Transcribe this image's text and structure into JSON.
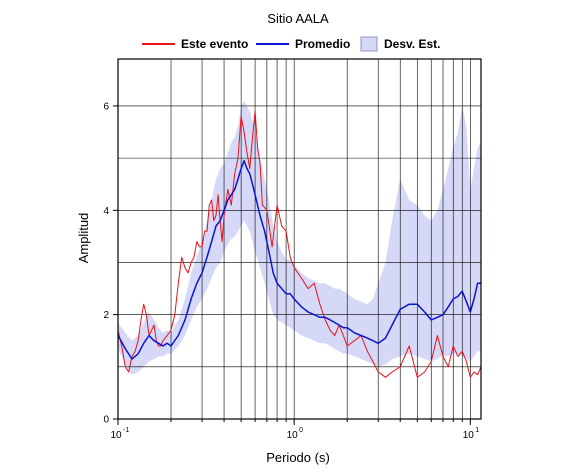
{
  "chart_data": {
    "type": "line",
    "title": "Sitio AALA",
    "xlabel": "Periodo (s)",
    "ylabel": "Amplitud",
    "xscale": "log",
    "xlim": [
      0.1,
      11.5
    ],
    "ylim": [
      0,
      6.9
    ],
    "grid": true,
    "legend_position": "top",
    "x_ticks": [
      {
        "base": "10",
        "exp": "-1",
        "value": 0.1
      },
      {
        "base": "10",
        "exp": "0",
        "value": 1
      },
      {
        "base": "10",
        "exp": "1",
        "value": 10
      }
    ],
    "y_ticks": [
      0,
      2,
      4,
      6
    ],
    "legend": [
      {
        "label": "Este evento",
        "kind": "line",
        "color": "#e8121a"
      },
      {
        "label": "Promedio",
        "kind": "line",
        "color": "#0a14d2"
      },
      {
        "label": "Desv. Est.",
        "kind": "band",
        "color": "#d6d8f7"
      }
    ],
    "series": [
      {
        "name": "Este evento",
        "color": "#e8121a",
        "x": [
          0.1,
          0.105,
          0.11,
          0.115,
          0.12,
          0.125,
          0.13,
          0.135,
          0.14,
          0.145,
          0.15,
          0.155,
          0.16,
          0.165,
          0.17,
          0.175,
          0.18,
          0.19,
          0.2,
          0.21,
          0.22,
          0.23,
          0.24,
          0.25,
          0.26,
          0.27,
          0.28,
          0.29,
          0.3,
          0.31,
          0.32,
          0.33,
          0.34,
          0.35,
          0.36,
          0.37,
          0.38,
          0.39,
          0.4,
          0.42,
          0.44,
          0.46,
          0.48,
          0.5,
          0.52,
          0.54,
          0.56,
          0.58,
          0.6,
          0.62,
          0.64,
          0.66,
          0.7,
          0.75,
          0.8,
          0.85,
          0.9,
          0.95,
          1.0,
          1.1,
          1.2,
          1.3,
          1.4,
          1.5,
          1.6,
          1.7,
          1.8,
          1.9,
          2.0,
          2.2,
          2.4,
          2.6,
          2.8,
          3.0,
          3.3,
          3.6,
          4.0,
          4.5,
          5.0,
          5.5,
          6.0,
          6.5,
          7.0,
          7.5,
          8.0,
          8.5,
          9.0,
          9.5,
          10.0,
          10.5,
          11.0,
          11.5
        ],
        "values": [
          1.7,
          1.4,
          1.0,
          0.9,
          1.2,
          1.3,
          1.5,
          1.9,
          2.2,
          2.0,
          1.6,
          1.7,
          1.8,
          1.5,
          1.4,
          1.4,
          1.5,
          1.6,
          1.7,
          2.0,
          2.6,
          3.1,
          2.9,
          2.8,
          3.0,
          3.1,
          3.4,
          3.3,
          3.3,
          3.6,
          3.6,
          4.1,
          4.2,
          3.8,
          3.9,
          4.3,
          3.8,
          3.4,
          3.9,
          4.4,
          4.1,
          4.7,
          5.0,
          5.8,
          5.5,
          5.1,
          4.8,
          5.4,
          5.9,
          5.2,
          4.9,
          4.1,
          4.0,
          3.3,
          4.1,
          3.7,
          3.6,
          3.1,
          2.9,
          2.7,
          2.5,
          2.6,
          2.2,
          1.9,
          1.7,
          1.6,
          1.8,
          1.6,
          1.4,
          1.5,
          1.6,
          1.3,
          1.1,
          0.9,
          0.8,
          0.9,
          1.0,
          1.4,
          0.8,
          0.9,
          1.1,
          1.6,
          1.2,
          1.0,
          1.4,
          1.2,
          1.3,
          1.1,
          0.8,
          0.9,
          0.85,
          1.0
        ]
      },
      {
        "name": "Promedio",
        "color": "#0a14d2",
        "x": [
          0.1,
          0.11,
          0.12,
          0.13,
          0.14,
          0.15,
          0.16,
          0.17,
          0.18,
          0.19,
          0.2,
          0.22,
          0.24,
          0.26,
          0.28,
          0.3,
          0.32,
          0.34,
          0.36,
          0.38,
          0.4,
          0.42,
          0.44,
          0.46,
          0.48,
          0.5,
          0.52,
          0.54,
          0.56,
          0.58,
          0.6,
          0.64,
          0.68,
          0.72,
          0.76,
          0.8,
          0.85,
          0.9,
          0.95,
          1.0,
          1.1,
          1.2,
          1.3,
          1.4,
          1.5,
          1.6,
          1.7,
          1.8,
          1.9,
          2.0,
          2.2,
          2.4,
          2.6,
          2.8,
          3.0,
          3.3,
          3.6,
          4.0,
          4.5,
          5.0,
          5.5,
          6.0,
          6.5,
          7.0,
          7.5,
          8.0,
          8.5,
          9.0,
          9.5,
          10.0,
          10.5,
          11.0,
          11.5
        ],
        "values": [
          1.6,
          1.35,
          1.15,
          1.25,
          1.45,
          1.6,
          1.5,
          1.45,
          1.4,
          1.45,
          1.4,
          1.6,
          1.9,
          2.3,
          2.6,
          2.8,
          3.1,
          3.4,
          3.7,
          3.8,
          4.0,
          4.2,
          4.3,
          4.4,
          4.6,
          4.8,
          4.95,
          4.8,
          4.7,
          4.5,
          4.3,
          3.9,
          3.6,
          3.2,
          2.8,
          2.6,
          2.5,
          2.4,
          2.4,
          2.3,
          2.15,
          2.05,
          2.0,
          1.95,
          1.95,
          1.9,
          1.85,
          1.8,
          1.75,
          1.75,
          1.65,
          1.6,
          1.55,
          1.5,
          1.45,
          1.55,
          1.8,
          2.1,
          2.2,
          2.2,
          2.05,
          1.9,
          1.95,
          2.0,
          2.15,
          2.3,
          2.35,
          2.45,
          2.25,
          2.05,
          2.3,
          2.6,
          2.6
        ]
      }
    ],
    "band": {
      "name": "Desv. Est.",
      "color": "#d6d8f7",
      "x": [
        0.1,
        0.11,
        0.12,
        0.13,
        0.14,
        0.15,
        0.16,
        0.17,
        0.18,
        0.19,
        0.2,
        0.22,
        0.24,
        0.26,
        0.28,
        0.3,
        0.32,
        0.34,
        0.36,
        0.38,
        0.4,
        0.42,
        0.44,
        0.46,
        0.48,
        0.5,
        0.52,
        0.54,
        0.56,
        0.58,
        0.6,
        0.64,
        0.68,
        0.72,
        0.76,
        0.8,
        0.85,
        0.9,
        0.95,
        1.0,
        1.1,
        1.2,
        1.3,
        1.4,
        1.5,
        1.6,
        1.7,
        1.8,
        1.9,
        2.0,
        2.2,
        2.4,
        2.6,
        2.8,
        3.0,
        3.3,
        3.6,
        4.0,
        4.5,
        5.0,
        5.5,
        6.0,
        6.5,
        7.0,
        7.5,
        8.0,
        8.5,
        9.0,
        9.5,
        10.0,
        10.5,
        11.0,
        11.5
      ],
      "lower": [
        1.35,
        1.05,
        0.85,
        0.9,
        1.0,
        1.1,
        1.15,
        1.2,
        1.2,
        1.25,
        1.25,
        1.4,
        1.6,
        1.9,
        2.15,
        2.3,
        2.5,
        2.7,
        2.9,
        3.0,
        3.2,
        3.35,
        3.45,
        3.5,
        3.6,
        3.7,
        3.8,
        3.7,
        3.6,
        3.4,
        3.2,
        2.9,
        2.6,
        2.3,
        2.0,
        1.9,
        1.85,
        1.8,
        1.75,
        1.7,
        1.6,
        1.55,
        1.5,
        1.45,
        1.45,
        1.4,
        1.35,
        1.3,
        1.25,
        1.25,
        1.2,
        1.15,
        1.1,
        1.05,
        1.0,
        1.05,
        1.15,
        1.2,
        1.25,
        1.2,
        1.15,
        1.1,
        1.15,
        1.2,
        1.2,
        1.25,
        1.25,
        1.2,
        1.15,
        1.1,
        1.2,
        1.3,
        1.3
      ],
      "upper": [
        1.85,
        1.65,
        1.5,
        1.6,
        1.85,
        2.05,
        1.9,
        1.75,
        1.65,
        1.7,
        1.65,
        1.9,
        2.3,
        2.8,
        3.1,
        3.4,
        3.8,
        4.2,
        4.6,
        4.8,
        4.9,
        5.1,
        5.3,
        5.4,
        5.6,
        6.0,
        6.1,
        6.0,
        5.9,
        5.7,
        5.5,
        5.0,
        4.6,
        4.2,
        3.7,
        3.4,
        3.2,
        3.05,
        3.05,
        2.95,
        2.8,
        2.7,
        2.65,
        2.6,
        2.6,
        2.55,
        2.5,
        2.5,
        2.45,
        2.4,
        2.3,
        2.25,
        2.2,
        2.3,
        2.6,
        3.0,
        3.8,
        4.6,
        4.2,
        4.1,
        3.9,
        3.8,
        4.0,
        4.4,
        4.8,
        5.2,
        5.5,
        6.0,
        5.6,
        4.4,
        4.8,
        5.2,
        5.3
      ]
    }
  }
}
